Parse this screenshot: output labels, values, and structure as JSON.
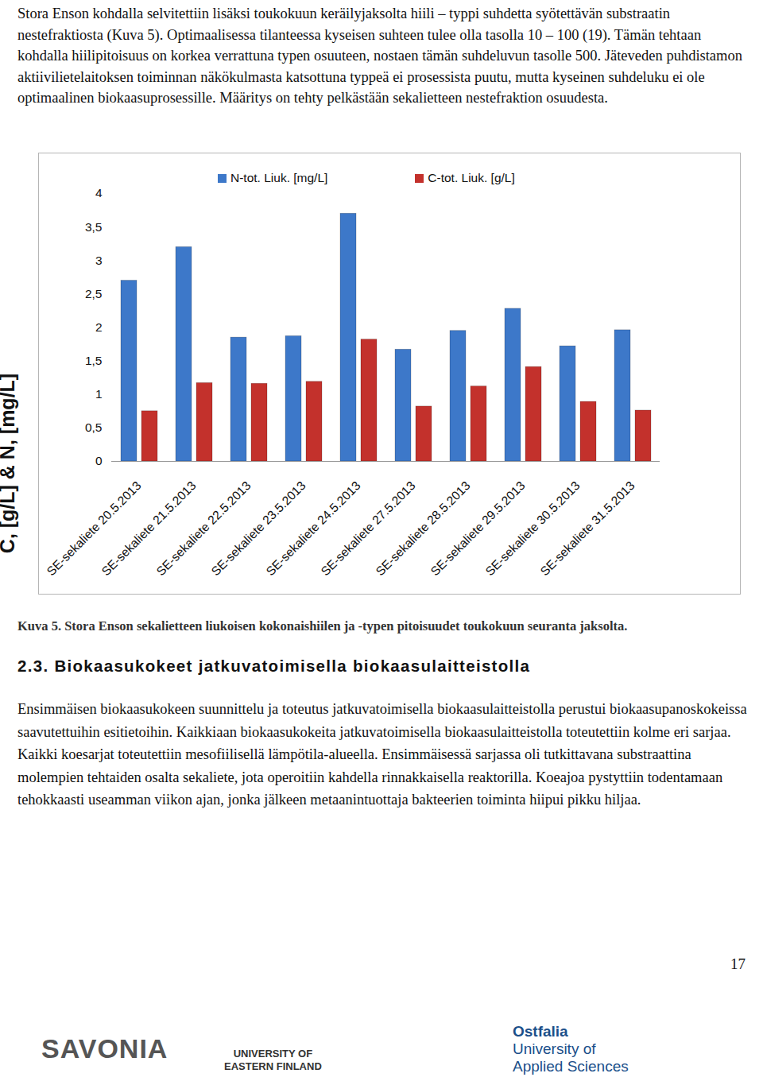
{
  "top_paragraph": "Stora Enson kohdalla selvitettiin lisäksi toukokuun keräilyjaksolta hiili – typpi suhdetta syötettävän substraatin nestefraktiosta (Kuva 5). Optimaalisessa tilanteessa kyseisen suhteen tulee olla tasolla 10 – 100 (19). Tämän tehtaan kohdalla hiilipitoisuus on korkea verrattuna typen osuuteen, nostaen tämän suhdeluvun tasolle 500. Jäteveden puhdistamon aktiivilietelaitoksen toiminnan näkökulmasta katsottuna typpeä ei prosessista puutu, mutta kyseinen suhdeluku ei ole optimaalinen biokaasuprosessille. Määritys on tehty pelkästään sekalietteen nestefraktion osuudesta.",
  "chart_data": {
    "type": "bar",
    "y_label": "C, [g/L] & N, [mg/L]",
    "categories": [
      "SE-sekaliete 20.5.2013",
      "SE-sekaliete 21.5.2013",
      "SE-sekaliete 22.5.2013",
      "SE-sekaliete 23.5.2013",
      "SE-sekaliete 24.5.2013",
      "SE-sekaliete 27.5.2013",
      "SE-sekaliete 28.5.2013",
      "SE-sekaliete 29.5.2013",
      "SE-sekaliete 30.5.2013",
      "SE-sekaliete 31.5.2013"
    ],
    "series": [
      {
        "name": "N-tot. Liuk. [mg/L]",
        "color": "#3d78c9",
        "values": [
          2.7,
          3.2,
          1.85,
          1.87,
          3.7,
          1.67,
          1.95,
          2.28,
          1.72,
          1.96
        ]
      },
      {
        "name": "C-tot. Liuk. [g/L]",
        "color": "#c3312c",
        "values": [
          0.75,
          1.17,
          1.16,
          1.19,
          1.82,
          0.82,
          1.12,
          1.41,
          0.89,
          0.76
        ]
      }
    ],
    "ylim": [
      0,
      4
    ],
    "yticks": [
      0,
      {
        "value": 0.5,
        "label": "0,5"
      },
      1,
      {
        "value": 1.5,
        "label": "1,5"
      },
      2,
      {
        "value": 2.5,
        "label": "2,5"
      },
      3,
      {
        "value": 3.5,
        "label": "3,5"
      },
      4
    ],
    "grid": false,
    "legend": "top"
  },
  "caption": "Kuva 5. Stora Enson sekalietteen liukoisen kokonaishiilen ja -typen pitoisuudet toukokuun seuranta jaksolta.",
  "heading": "2.3. Biokaasukokeet jatkuvatoimisella biokaasulaitteistolla",
  "body_paragraph": "Ensimmäisen biokaasukokeen suunnittelu ja toteutus jatkuvatoimisella biokaasulaitteistolla perustui biokaasupanoskokeissa saavutettuihin esitietoihin. Kaikkiaan biokaasukokeita jatkuvatoimisella biokaasulaitteistolla toteutettiin kolme eri sarjaa. Kaikki koesarjat toteutettiin mesofiilisellä lämpötila-alueella. Ensimmäisessä sarjassa oli tutkittavana substraattina molempien tehtaiden osalta sekaliete, jota operoitiin kahdella rinnakkaisella reaktorilla. Koeajoa pystyttiin todentamaan tehokkaasti useamman viikon ajan, jonka jälkeen metaanintuottaja bakteerien toiminta hiipui pikku hiljaa.",
  "page_number": "17",
  "logos": [
    {
      "lines": [
        "SAVONIA"
      ]
    },
    {
      "lines": [
        "UNIVERSITY OF",
        "EASTERN FINLAND"
      ]
    },
    {
      "lines": [
        "Ostfalia",
        "University of",
        "Applied Sciences"
      ]
    }
  ]
}
